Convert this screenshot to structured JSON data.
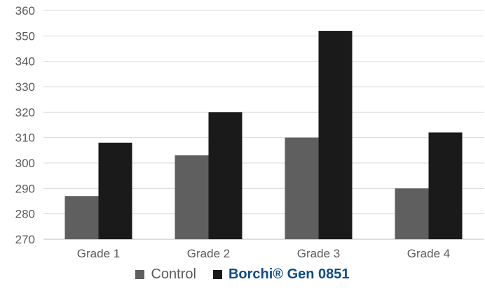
{
  "chart_data": {
    "type": "bar",
    "title": "",
    "xlabel": "",
    "ylabel": "",
    "categories": [
      "Grade 1",
      "Grade 2",
      "Grade 3",
      "Grade 4"
    ],
    "ylim": [
      270,
      360
    ],
    "yticks": [
      270,
      280,
      290,
      300,
      310,
      320,
      330,
      340,
      350,
      360
    ],
    "grid": true,
    "legend_position": "bottom",
    "series": [
      {
        "name": "Control",
        "values": [
          287,
          303,
          310,
          290
        ],
        "color": "#5f5f5f"
      },
      {
        "name": "Borchi® Gen 0851",
        "values": [
          308,
          320,
          352,
          312
        ],
        "color": "#1a1a1a"
      }
    ]
  },
  "legend": {
    "items": [
      {
        "label": "Control",
        "color": "#5f5f5f"
      },
      {
        "label": "Borchi® Gen 0851",
        "color": "#1a1a1a"
      }
    ]
  }
}
